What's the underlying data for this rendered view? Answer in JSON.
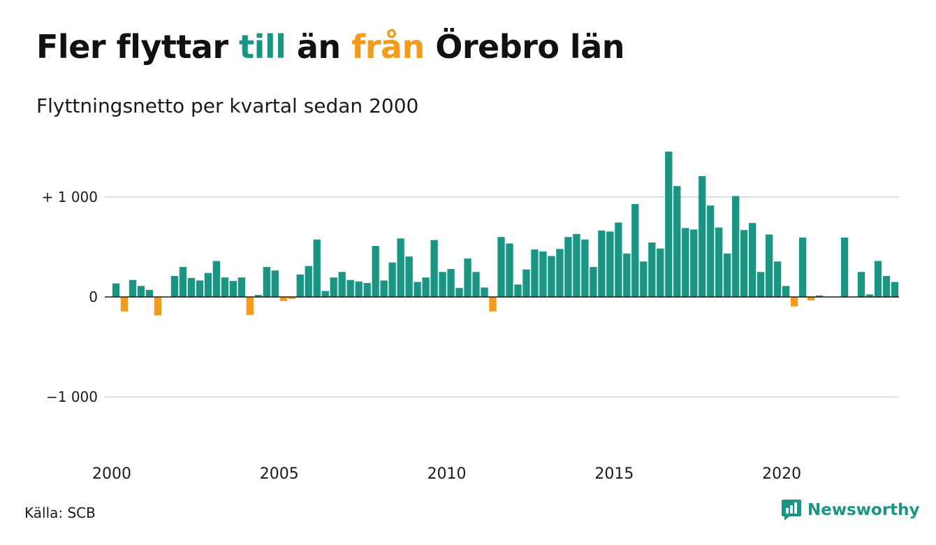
{
  "title": {
    "part1": "Fler flyttar ",
    "part2": "till",
    "part3": " än ",
    "part4": "från",
    "part5": " Örebro län"
  },
  "subtitle": "Flyttningsnetto per kvartal sedan 2000",
  "source": "Källa: SCB",
  "brand": {
    "name": "Newsworthy",
    "icon": "newsworthy-chart-logo-icon"
  },
  "colors": {
    "positive": "#1a9584",
    "negative": "#f39c1c",
    "grid": "#dddddd",
    "text": "#111111"
  },
  "chart_data": {
    "type": "bar",
    "xlabel": "",
    "ylabel": "",
    "ylim": [
      -1600,
      1600
    ],
    "grid": true,
    "y_ticks": [
      {
        "value": 1000,
        "label": "+ 1 000"
      },
      {
        "value": 0,
        "label": "0"
      },
      {
        "value": -1000,
        "label": "−1 000"
      }
    ],
    "x_ticks": [
      {
        "value": 2000,
        "label": "2000"
      },
      {
        "value": 2005,
        "label": "2005"
      },
      {
        "value": 2010,
        "label": "2010"
      },
      {
        "value": 2015,
        "label": "2015"
      },
      {
        "value": 2020,
        "label": "2020"
      }
    ],
    "x_start": 2000,
    "periods_per_year": 4,
    "values": [
      135,
      -145,
      170,
      110,
      70,
      -185,
      0,
      210,
      300,
      190,
      165,
      240,
      360,
      195,
      160,
      195,
      -180,
      20,
      300,
      265,
      -40,
      -20,
      225,
      310,
      575,
      60,
      195,
      250,
      170,
      155,
      140,
      510,
      165,
      345,
      585,
      405,
      150,
      195,
      570,
      250,
      280,
      90,
      385,
      250,
      95,
      -145,
      600,
      535,
      125,
      275,
      475,
      455,
      410,
      480,
      600,
      630,
      575,
      300,
      665,
      655,
      745,
      435,
      930,
      355,
      545,
      485,
      1455,
      1110,
      690,
      675,
      1210,
      915,
      695,
      435,
      1010,
      670,
      740,
      250,
      625,
      355,
      110,
      -95,
      595,
      -35,
      15,
      0,
      0,
      595,
      0,
      250,
      25,
      360,
      210,
      150
    ]
  }
}
